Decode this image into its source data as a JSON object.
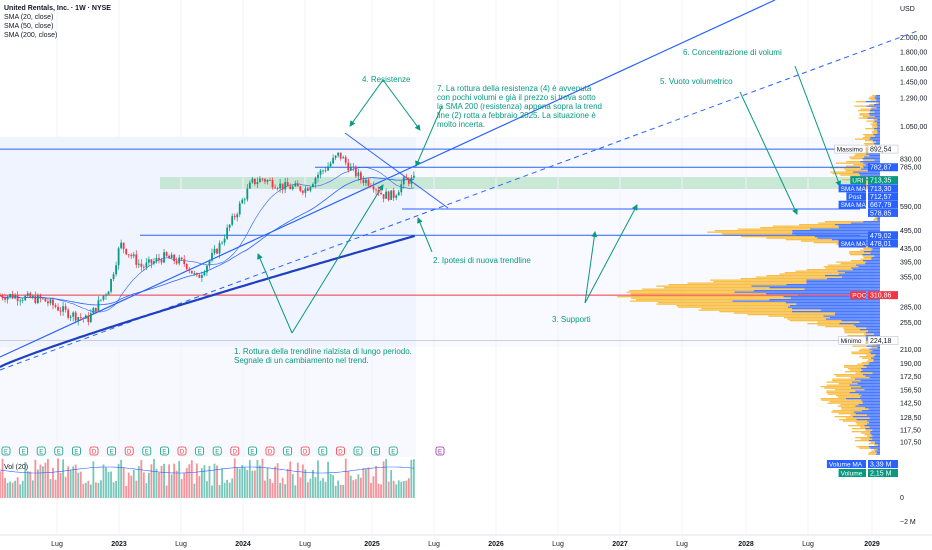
{
  "header": {
    "title": "United Rentals, Inc. · 1W · NYSE",
    "indicators": [
      "SMA (20, close)",
      "SMA (50, close)",
      "SMA (200, close)"
    ],
    "currency": "USD",
    "volume_label": "Vol (20)"
  },
  "colors": {
    "price_up": "#089981",
    "price_down": "#f23645",
    "sma20": "#2962ff",
    "sma50": "#2962ff",
    "sma200": "#1e3fbf",
    "resistance": "#2962ff",
    "poc": "#f23645",
    "annotation": "#089981",
    "vp_up": "#2962ff",
    "vp_down": "#f7b731",
    "zone": "#b7dfc5"
  },
  "chart_data": {
    "type": "candlestick",
    "scale": "log",
    "ylim": [
      98,
      2300
    ],
    "x_tick_labels": [
      "Lug",
      "2023",
      "Lug",
      "2024",
      "Lug",
      "2025",
      "Lug",
      "2026",
      "Lug",
      "2027",
      "Lug",
      "2028",
      "Lug",
      "2029"
    ],
    "y_tick_labels": [
      "2.000,00",
      "1.800,00",
      "1.600,00",
      "1.450,00",
      "1.290,00",
      "1.050,00",
      "830,00",
      "785,00",
      "590,00",
      "495,00",
      "435,00",
      "395,00",
      "355,00",
      "285,00",
      "255,00",
      "210,00",
      "190,00",
      "172,50",
      "156,50",
      "142,50",
      "128,50",
      "117,50",
      "107,50"
    ],
    "volume_axis_labels": [
      "0",
      "−2 M"
    ],
    "close_path": [
      [
        "2022-05",
        310
      ],
      [
        "2022-08",
        300
      ],
      [
        "2022-10",
        275
      ],
      [
        "2022-12",
        260
      ],
      [
        "2023-02",
        330
      ],
      [
        "2023-03",
        450
      ],
      [
        "2023-05",
        380
      ],
      [
        "2023-07",
        410
      ],
      [
        "2023-09",
        390
      ],
      [
        "2023-10",
        350
      ],
      [
        "2023-12",
        440
      ],
      [
        "2024-02",
        600
      ],
      [
        "2024-03",
        700
      ],
      [
        "2024-04",
        720
      ],
      [
        "2024-06",
        680
      ],
      [
        "2024-08",
        670
      ],
      [
        "2024-09",
        740
      ],
      [
        "2024-10",
        790
      ],
      [
        "2024-11",
        860
      ],
      [
        "2024-12",
        780
      ],
      [
        "2025-01",
        720
      ],
      [
        "2025-02",
        700
      ],
      [
        "2025-03",
        640
      ],
      [
        "2025-04",
        640
      ],
      [
        "2025-05",
        713
      ]
    ],
    "price_labels": [
      {
        "text": "892,54",
        "value": 892.54,
        "label": "Massimo"
      },
      {
        "text": "782,87",
        "value": 782.87
      },
      {
        "text": "713,35",
        "value": 713.35,
        "label": "URI"
      },
      {
        "text": "713,30",
        "value": 713.3,
        "label": "SMA MA"
      },
      {
        "text": "712,57",
        "value": 712.57,
        "label": "Post"
      },
      {
        "text": "667,79",
        "value": 667.79,
        "label": "SMA MA"
      },
      {
        "text": "578,85",
        "value": 578.85
      },
      {
        "text": "479,02",
        "value": 479.02
      },
      {
        "text": "478,01",
        "value": 478.01,
        "label": "SMA MA"
      },
      {
        "text": "310,86",
        "value": 310.86,
        "label": "POC"
      },
      {
        "text": "224,18",
        "value": 224.18,
        "label": "Minimo"
      }
    ],
    "volume_labels": [
      {
        "text": "3,39 M",
        "label": "Volume MA"
      },
      {
        "text": "2,15 M",
        "label": "Volume"
      }
    ],
    "annotations": [
      {
        "id": "1",
        "text": "1. Rottura della trendline rialzista di lungo periodo. Segnale di un cambiamento nel trend."
      },
      {
        "id": "2",
        "text": "2. Ipotesi di nuova trendline"
      },
      {
        "id": "3",
        "text": "3. Supporti"
      },
      {
        "id": "4",
        "text": "4. Resistenze"
      },
      {
        "id": "5",
        "text": "5. Vuoto volumetrico"
      },
      {
        "id": "6",
        "text": "6. Concentrazione di volumi"
      },
      {
        "id": "7",
        "text": "7. La rottura della resistenza (4) è avvenuta con pochi volumi e già il prezzo si trova sotto la SMA 200 (resistenza) appena sopra la trend line (2) rotta a febbraio 2025. La situazione è molto incerta."
      }
    ],
    "event_markers": [
      "E",
      "E",
      "E",
      "E",
      "E",
      "D",
      "E",
      "D",
      "E",
      "E",
      "D",
      "E",
      "E",
      "D",
      "E",
      "D",
      "E",
      "D",
      "E",
      "D",
      "E",
      "E",
      "E"
    ]
  }
}
